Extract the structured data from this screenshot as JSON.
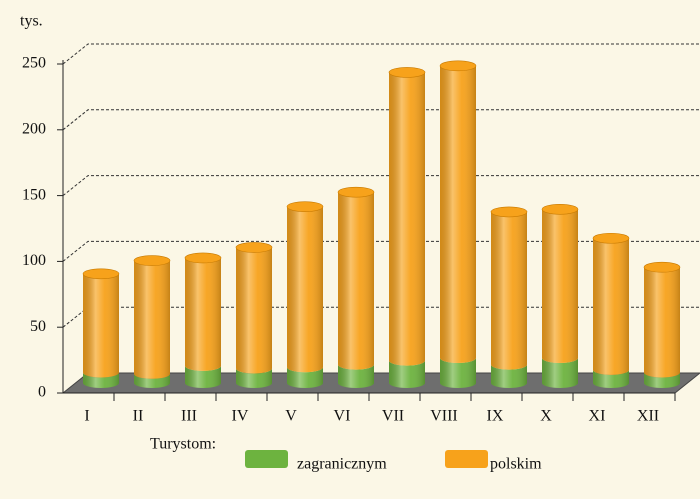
{
  "chart_data": {
    "type": "bar",
    "stacked": true,
    "ylabel": "tys.",
    "categories": [
      "I",
      "II",
      "III",
      "IV",
      "V",
      "VI",
      "VII",
      "VIII",
      "IX",
      "X",
      "XI",
      "XII"
    ],
    "series": [
      {
        "name": "zagranicznym",
        "color": "#6db33f",
        "values": [
          8,
          7,
          13,
          11,
          12,
          14,
          17,
          19,
          14,
          19,
          10,
          8
        ]
      },
      {
        "name": "polskim",
        "color": "#f7a21b",
        "values": [
          75,
          86,
          82,
          92,
          122,
          131,
          219,
          222,
          116,
          113,
          100,
          80
        ]
      }
    ],
    "legend_title": "Turystom:",
    "ylim": [
      0,
      250
    ],
    "yticks": [
      0,
      50,
      100,
      150,
      200,
      250
    ],
    "grid": true
  }
}
